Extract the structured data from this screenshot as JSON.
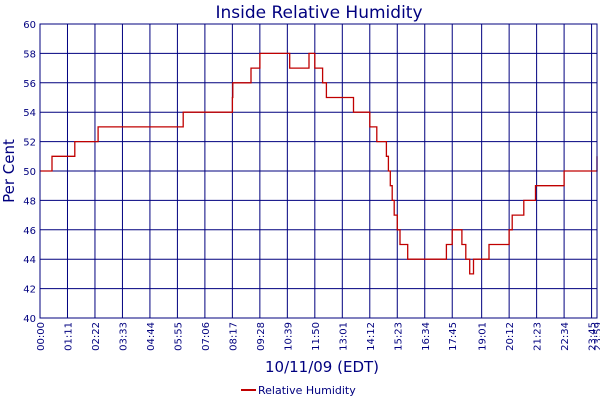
{
  "chart_data": {
    "type": "line",
    "title": "Inside Relative Humidity",
    "xlabel": "10/11/09 (EDT)",
    "ylabel": "Per Cent",
    "ylim": [
      40,
      60
    ],
    "yticks": [
      40,
      42,
      44,
      46,
      48,
      50,
      52,
      54,
      56,
      58,
      60
    ],
    "xticks": [
      "00:00",
      "01:11",
      "02:22",
      "03:33",
      "04:44",
      "05:55",
      "07:06",
      "08:17",
      "09:28",
      "10:39",
      "11:50",
      "13:01",
      "14:12",
      "15:23",
      "16:34",
      "17:45",
      "19:01",
      "20:12",
      "21:23",
      "22:34",
      "23:45",
      "23:59"
    ],
    "grid": true,
    "legend_position": "bottom-center",
    "colors": {
      "axis": "#00007f",
      "grid": "#00007f",
      "series": "#c00000",
      "text": "#00007f"
    },
    "series": [
      {
        "name": "Relative Humidity",
        "x": [
          "00:00",
          "00:30",
          "00:31",
          "01:11",
          "01:12",
          "01:30",
          "02:20",
          "02:22",
          "02:30",
          "03:33",
          "04:44",
          "05:55",
          "06:10",
          "07:06",
          "08:10",
          "08:17",
          "08:18",
          "08:30",
          "09:05",
          "09:28",
          "10:00",
          "10:10",
          "10:25",
          "10:35",
          "10:45",
          "11:00",
          "11:20",
          "11:35",
          "11:45",
          "11:50",
          "12:10",
          "12:20",
          "12:40",
          "13:01",
          "13:30",
          "13:50",
          "14:00",
          "14:12",
          "14:20",
          "14:30",
          "14:40",
          "14:45",
          "14:55",
          "15:00",
          "15:05",
          "15:10",
          "15:15",
          "15:23",
          "15:30",
          "15:40",
          "15:50",
          "16:00",
          "16:20",
          "16:34",
          "17:00",
          "17:25",
          "17:30",
          "17:40",
          "17:45",
          "17:50",
          "18:00",
          "18:10",
          "18:20",
          "18:30",
          "18:40",
          "19:01",
          "19:20",
          "19:40",
          "20:00",
          "20:12",
          "20:20",
          "20:30",
          "20:50",
          "21:00",
          "21:20",
          "21:23",
          "21:40",
          "22:00",
          "22:20",
          "22:34",
          "22:40",
          "23:00",
          "23:45",
          "23:56",
          "23:59"
        ],
        "y": [
          50,
          50,
          51,
          51,
          51,
          52,
          52,
          52,
          53,
          53,
          53,
          53,
          54,
          54,
          54,
          55,
          56,
          56,
          57,
          58,
          58,
          58,
          58,
          58,
          57,
          57,
          57,
          58,
          58,
          57,
          56,
          55,
          55,
          55,
          54,
          54,
          54,
          53,
          53,
          52,
          52,
          52,
          51,
          50,
          49,
          48,
          47,
          46,
          45,
          45,
          44,
          44,
          44,
          44,
          44,
          44,
          45,
          45,
          46,
          46,
          46,
          45,
          44,
          43,
          44,
          44,
          45,
          45,
          45,
          46,
          47,
          47,
          48,
          48,
          49,
          49,
          49,
          49,
          49,
          50,
          50,
          50,
          50,
          50,
          51
        ]
      }
    ]
  }
}
